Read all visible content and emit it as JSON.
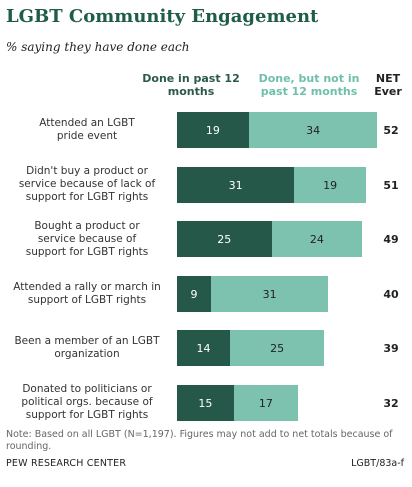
{
  "title": "LGBT Community Engagement",
  "subtitle": "% saying they have done each",
  "note": "Note: Based on all LGBT (N=1,197). Figures may not add to net totals because of rounding.",
  "source": "PEW RESEARCH CENTER",
  "code": "LGBT/83a-f",
  "colors": {
    "past12": "#255848",
    "notPast12": "#7cc2ae",
    "title": "#1f5c4a"
  },
  "chart_data": {
    "type": "bar",
    "orientation": "horizontal",
    "stacked": true,
    "title": "LGBT Community Engagement",
    "subtitle": "% saying they have done each",
    "net_header": "NET Ever",
    "categories": [
      "Attended an LGBT pride event",
      "Didn't buy a product or service because of lack of support for LGBT rights",
      "Bought a product or service because of support for LGBT rights",
      "Attended a rally or march in support of LGBT rights",
      "Been a member of an LGBT organization",
      "Donated to politicians or political orgs. because of support for LGBT rights"
    ],
    "series": [
      {
        "name": "Done in past 12 months",
        "values": [
          19,
          31,
          25,
          9,
          14,
          15
        ]
      },
      {
        "name": "Done, but not in past 12 months",
        "values": [
          34,
          19,
          24,
          31,
          25,
          17
        ]
      }
    ],
    "net": [
      52,
      51,
      49,
      40,
      39,
      32
    ]
  }
}
